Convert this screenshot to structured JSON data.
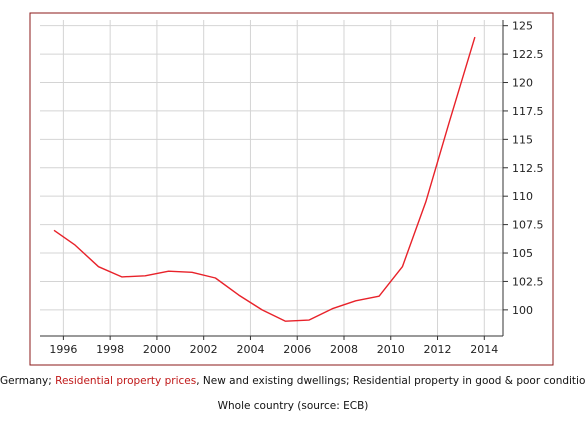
{
  "chart_data": {
    "type": "line",
    "title": "",
    "xlabel": "",
    "ylabel": "",
    "x_ticks": [
      "1996",
      "1998",
      "2000",
      "2002",
      "2004",
      "2006",
      "2008",
      "2010",
      "2012",
      "2014"
    ],
    "y_ticks": [
      "100",
      "102.5",
      "105",
      "107.5",
      "110",
      "112.5",
      "115",
      "117.5",
      "120",
      "122.5",
      "125"
    ],
    "xlim": [
      1995.0,
      2014.8
    ],
    "ylim": [
      97.7,
      125.5
    ],
    "grid": true,
    "y_axis_side": "right",
    "series": [
      {
        "color": "#e8222a",
        "x": [
          1995.6,
          1996.5,
          1997.5,
          1998.5,
          1999.5,
          2000.5,
          2001.5,
          2002.5,
          2003.5,
          2004.5,
          2005.5,
          2006.5,
          2007.5,
          2008.5,
          2009.5,
          2010.5,
          2011.5,
          2012.5,
          2013.6
        ],
        "y": [
          107.0,
          105.7,
          103.8,
          102.9,
          103.0,
          103.4,
          103.3,
          102.8,
          101.3,
          100.0,
          99.0,
          99.1,
          100.1,
          100.8,
          101.2,
          103.8,
          109.5,
          116.5,
          124.0
        ]
      }
    ]
  },
  "caption": {
    "line1_before": "Germany; ",
    "line1_highlight": "Residential property prices",
    "line1_after": ", New and existing dwellings; Residential property in good & poor condition;",
    "line2": "Whole country (source: ECB)"
  },
  "colors": {
    "frame": "#8b1a1a",
    "grid": "#d4d4d4",
    "axis": "#333333",
    "highlight": "#c01818"
  }
}
